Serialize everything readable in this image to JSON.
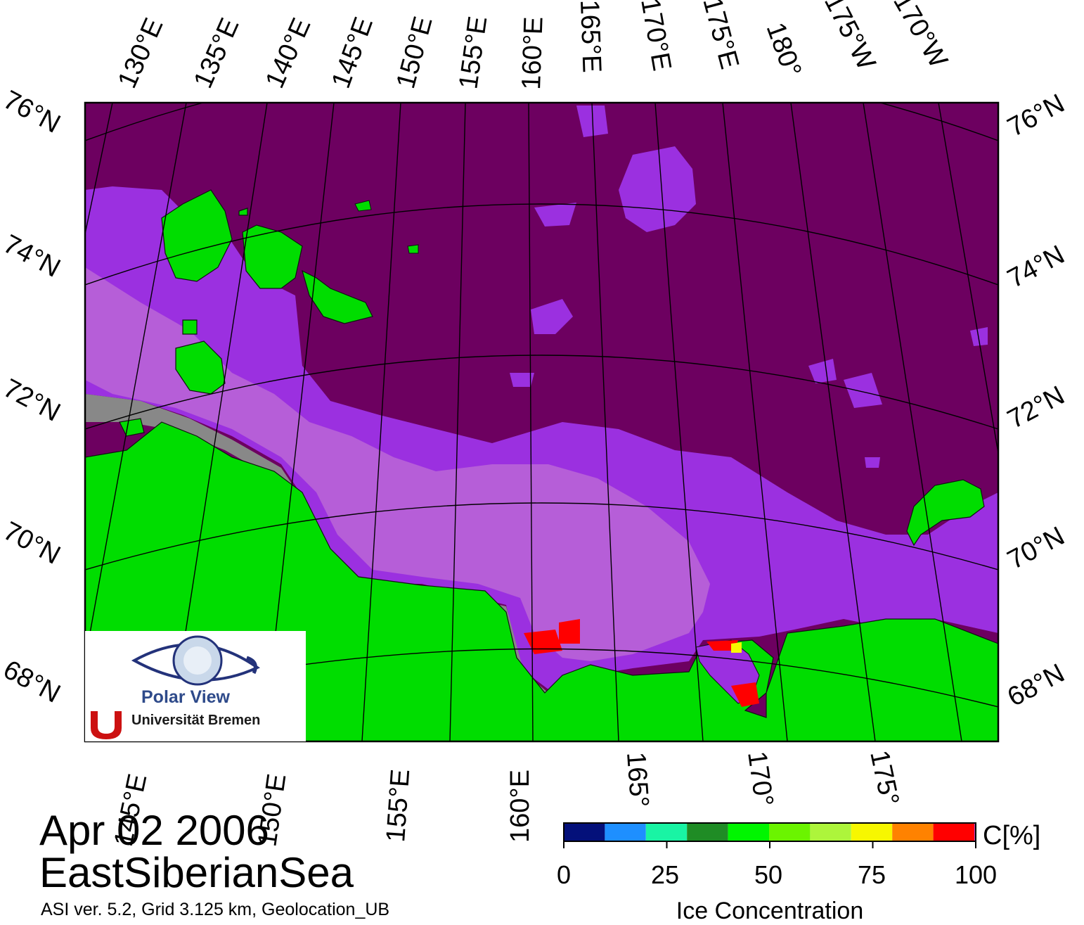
{
  "date": "Apr 02 2006",
  "region": "EastSiberianSea",
  "footer": "ASI ver. 5.2,  Grid 3.125 km, Geolocation_UB",
  "logo": {
    "name": "Polar View",
    "institution": "Universität Bremen"
  },
  "top_lon_labels": [
    "130°E",
    "135°E",
    "140°E",
    "145°E",
    "150°E",
    "155°E",
    "160°E",
    "165°E",
    "170°E",
    "175°E",
    "180°",
    "175°W",
    "170°W"
  ],
  "bottom_lon_labels": [
    "145°E",
    "150°E",
    "155°E",
    "160°E",
    "165°",
    "170°",
    "175°"
  ],
  "left_lat_labels": [
    "76°N",
    "74°N",
    "72°N",
    "70°N",
    "68°N"
  ],
  "right_lat_labels": [
    "76°N",
    "74°N",
    "72°N",
    "70°N",
    "68°N"
  ],
  "colorbar": {
    "unit": "C[%]",
    "label": "Ice Concentration",
    "ticks": [
      "0",
      "25",
      "50",
      "75",
      "100"
    ],
    "colors": [
      "#04107a",
      "#1e8fff",
      "#19f4a4",
      "#1f8c25",
      "#00f600",
      "#6bf400",
      "#adf53b",
      "#f7f700",
      "#ff8200",
      "#ff0000",
      "#ba55d3",
      "#9400d3",
      "#f6f6f6"
    ]
  },
  "colors": {
    "land": "#00dd00",
    "open_ice": "#6d0060",
    "ice_high": "#9b30e0",
    "ice_mid": "#b65ed8",
    "shelf": "#888888"
  }
}
